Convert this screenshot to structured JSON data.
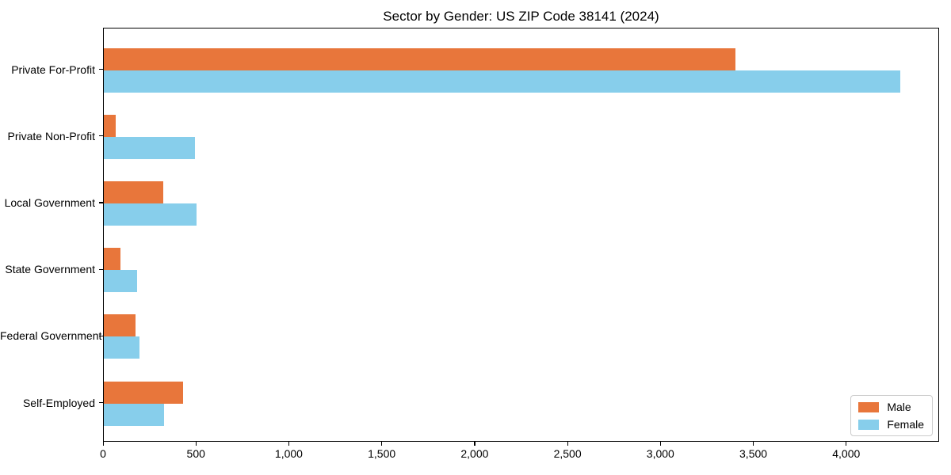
{
  "title": "Sector by Gender: US ZIP Code 38141 (2024)",
  "colors": {
    "male": "#e8763b",
    "female": "#87ceeb",
    "axis": "#000000",
    "legend_border": "#cccccc",
    "background": "#ffffff"
  },
  "legend": {
    "position": "lower right",
    "items": [
      {
        "label": "Male",
        "color": "#e8763b"
      },
      {
        "label": "Female",
        "color": "#87ceeb"
      }
    ]
  },
  "chart_data": {
    "type": "bar",
    "orientation": "horizontal",
    "title": "Sector by Gender: US ZIP Code 38141 (2024)",
    "xlabel": "",
    "ylabel": "",
    "categories": [
      "Private For-Profit",
      "Private Non-Profit",
      "Local Government",
      "State Government",
      "Federal Government",
      "Self-Employed"
    ],
    "series": [
      {
        "name": "Male",
        "color": "#e8763b",
        "values": [
          3400,
          65,
          320,
          90,
          170,
          425
        ]
      },
      {
        "name": "Female",
        "color": "#87ceeb",
        "values": [
          4285,
          490,
          500,
          180,
          190,
          325
        ]
      }
    ],
    "xlim": [
      0,
      4500
    ],
    "xticks": [
      0,
      500,
      1000,
      1500,
      2000,
      2500,
      3000,
      3500,
      4000
    ],
    "xtick_labels": [
      "0",
      "500",
      "1,000",
      "1,500",
      "2,000",
      "2,500",
      "3,000",
      "3,500",
      "4,000"
    ],
    "grid": false,
    "legend_position": "lower right"
  }
}
